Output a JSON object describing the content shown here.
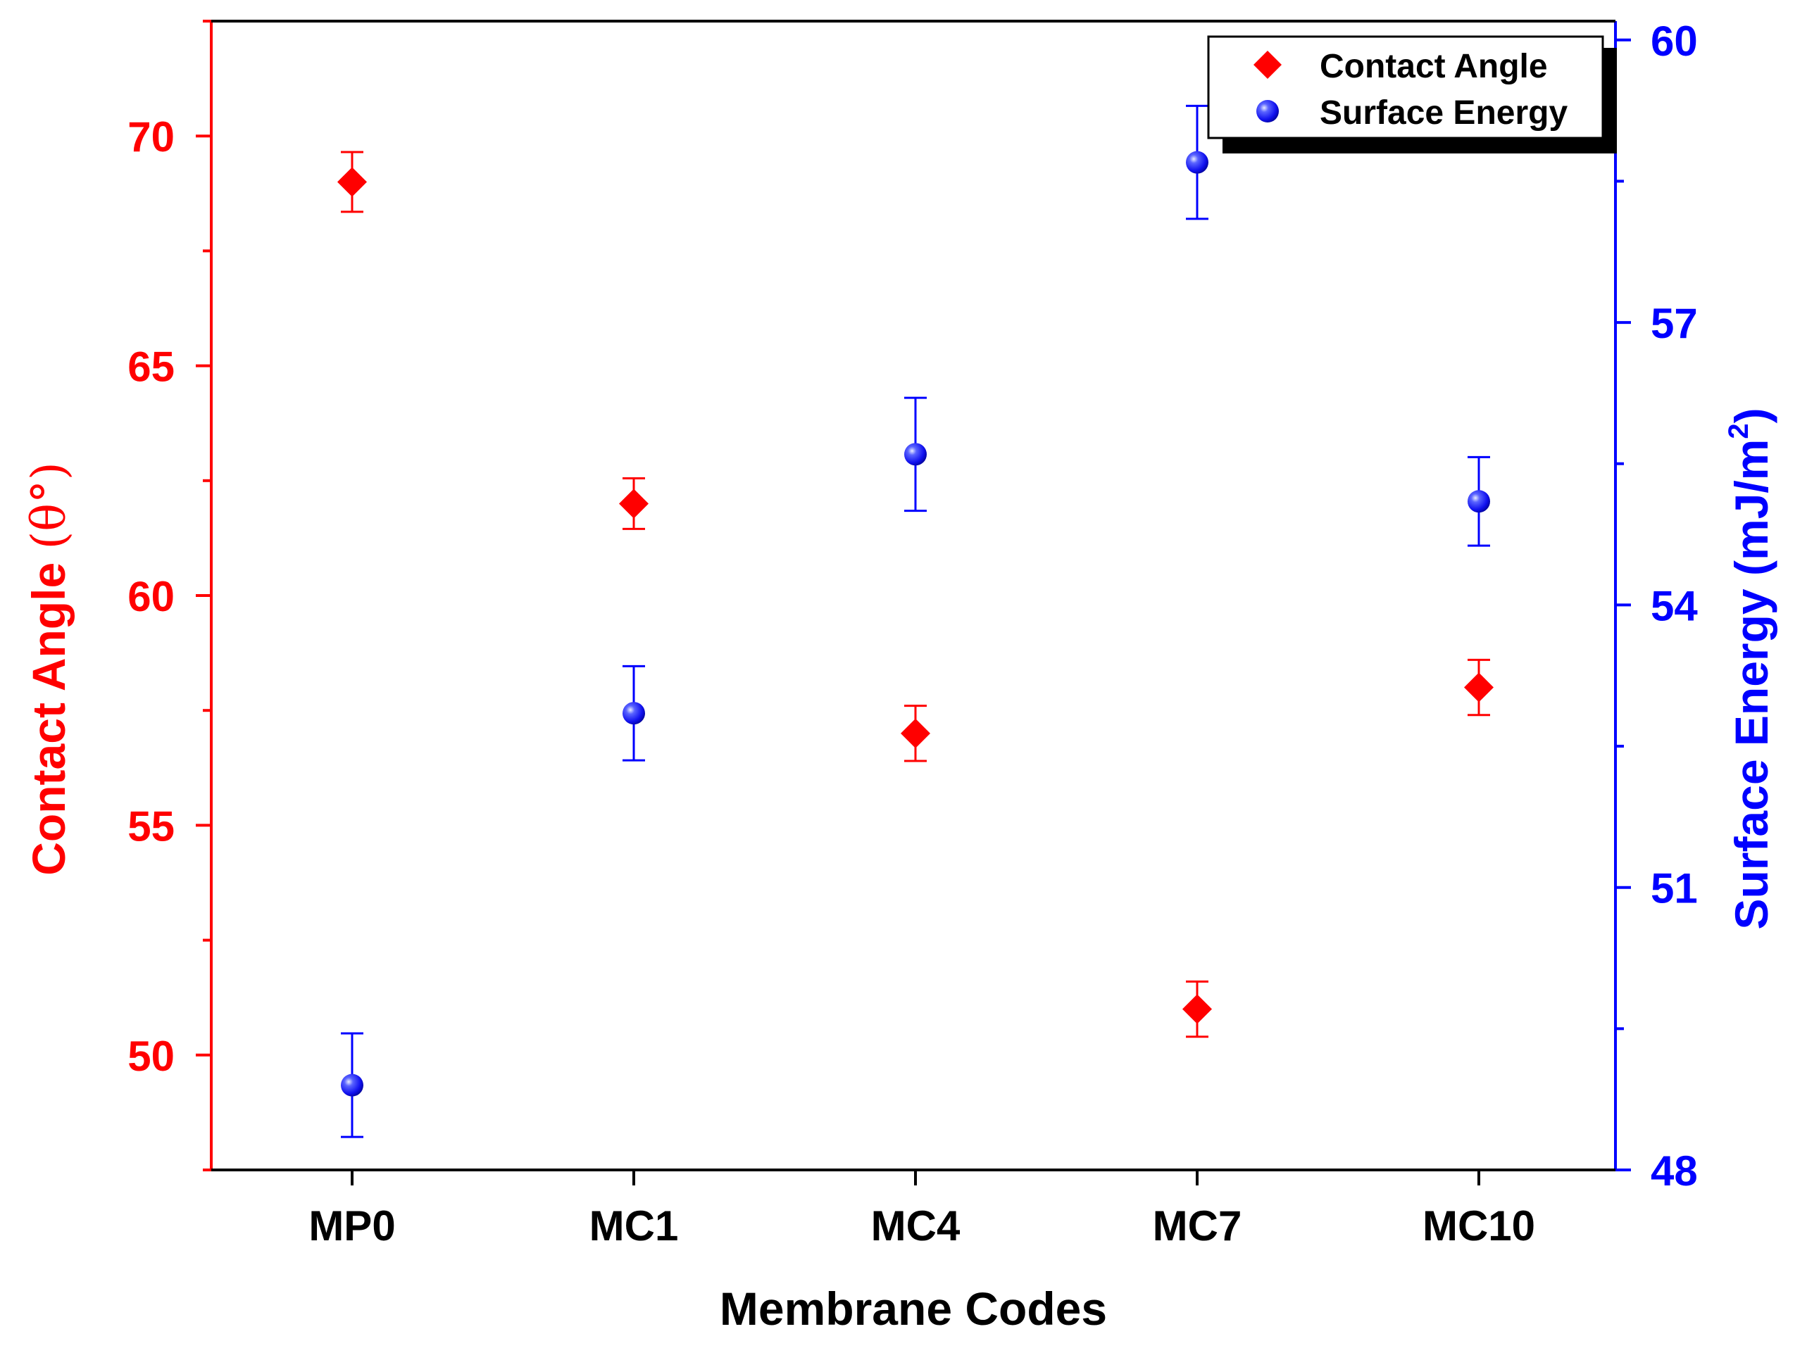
{
  "chart_data": {
    "type": "scatter",
    "xlabel": "Membrane Codes",
    "categories": [
      "MP0",
      "MC1",
      "MC4",
      "MC7",
      "MC10"
    ],
    "left_axis": {
      "label": "Contact Angle (θ°)",
      "label_main": "Contact Angle ",
      "label_unit": "(θ°)",
      "color": "#ff0000",
      "ylim": [
        47.5,
        72.5
      ],
      "ticks": [
        50,
        55,
        60,
        65,
        70
      ]
    },
    "right_axis": {
      "label": "Surface Energy (mJ/m²)",
      "label_main": "Surface Energy (mJ/m",
      "label_sup": "2",
      "label_close": ")",
      "color": "#0000ff",
      "ylim": [
        48,
        60.2
      ],
      "ticks": [
        48,
        51,
        54,
        57,
        60
      ]
    },
    "series": [
      {
        "name": "Contact Angle",
        "axis": "left",
        "marker": "diamond",
        "color": "#ff0000",
        "values": [
          69.0,
          62.0,
          57.0,
          51.0,
          58.0
        ],
        "errors": [
          0.65,
          0.55,
          0.6,
          0.6,
          0.6
        ]
      },
      {
        "name": "Surface Energy",
        "axis": "right",
        "marker": "sphere",
        "color": "#0000ff",
        "values": [
          48.9,
          52.85,
          55.6,
          58.7,
          55.1
        ],
        "errors": [
          0.55,
          0.5,
          0.6,
          0.6,
          0.47
        ]
      }
    ],
    "legend": {
      "position": "top-right",
      "entries": [
        "Contact Angle",
        "Surface Energy"
      ]
    }
  }
}
